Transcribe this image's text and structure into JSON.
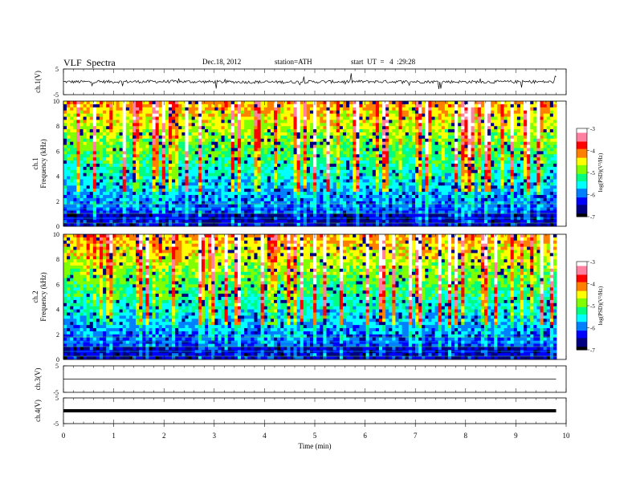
{
  "header": {
    "title": "VLF  Spectra",
    "date": "Dec.18, 2012",
    "station": "station=ATH",
    "start_ut": "start  UT  =   4  :29:28"
  },
  "colors": {
    "spectrogram_scale": [
      "#000000",
      "#000080",
      "#0000ff",
      "#0080ff",
      "#00ffff",
      "#00ff80",
      "#80ff00",
      "#ffff00",
      "#ff8000",
      "#ff0000",
      "#ff80a0",
      "#ffffff"
    ]
  },
  "chart_data": [
    {
      "type": "line",
      "panel": "ch1-waveform",
      "ylabel": "ch.1(V)",
      "ylim": [
        -5,
        5
      ],
      "yticks": [
        "5",
        "-5"
      ],
      "xlim": [
        0,
        10
      ],
      "series": [
        {
          "x": [
            0,
            2,
            4,
            6,
            8,
            9.8
          ],
          "values": [
            0.0,
            0.1,
            -0.1,
            0.1,
            0.0,
            0.0
          ]
        }
      ]
    },
    {
      "type": "heatmap",
      "panel": "ch1-spectrogram",
      "ylabel": "ch.1\nFrequency  (kHz)",
      "ylim": [
        0,
        10
      ],
      "yticks": [
        "0",
        "2",
        "4",
        "6",
        "8",
        "10"
      ],
      "xlim": [
        0,
        10
      ],
      "colorbar": {
        "label": "log(PSD)(V²/Hz)",
        "range": [
          -7,
          -3
        ],
        "ticks": [
          "-3",
          "-4",
          "-5",
          "-6",
          "-7"
        ]
      }
    },
    {
      "type": "heatmap",
      "panel": "ch2-spectrogram",
      "ylabel": "ch.2\nFrequency  (kHz)",
      "ylim": [
        0,
        10
      ],
      "yticks": [
        "0",
        "2",
        "4",
        "6",
        "8",
        "10"
      ],
      "xlim": [
        0,
        10
      ],
      "colorbar": {
        "label": "log(PSD)(V²/Hz)",
        "range": [
          -7,
          -3
        ],
        "ticks": [
          "-3",
          "-4",
          "-5",
          "-6",
          "-7"
        ]
      }
    },
    {
      "type": "line",
      "panel": "ch3-waveform",
      "ylabel": "ch.3(V)",
      "ylim": [
        -5,
        5
      ],
      "yticks": [
        "5",
        "-5"
      ],
      "xlim": [
        0,
        10
      ],
      "series": [
        {
          "x": [
            0,
            9.8
          ],
          "values": [
            0.0,
            0.0
          ]
        }
      ]
    },
    {
      "type": "line",
      "panel": "ch4-waveform",
      "ylabel": "ch.4(V)",
      "ylim": [
        -5,
        5
      ],
      "yticks": [
        "5",
        "-5"
      ],
      "xlim": [
        0,
        10
      ],
      "xlabel": "Time  (min)",
      "xticks": [
        "0",
        "1",
        "2",
        "3",
        "4",
        "5",
        "6",
        "7",
        "8",
        "9",
        "10"
      ],
      "series": [
        {
          "x": [
            0,
            9.8
          ],
          "values": [
            0.0,
            0.0
          ]
        }
      ]
    }
  ]
}
